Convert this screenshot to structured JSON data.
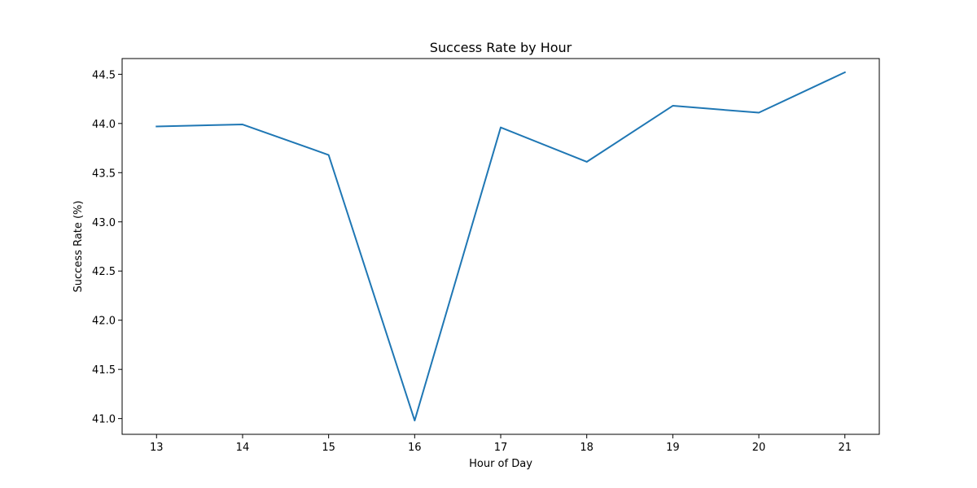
{
  "chart_data": {
    "type": "line",
    "title": "Success Rate by Hour",
    "xlabel": "Hour of Day",
    "ylabel": "Success Rate (%)",
    "x": [
      13,
      14,
      15,
      16,
      17,
      18,
      19,
      20,
      21
    ],
    "series": [
      {
        "name": "Success Rate",
        "values": [
          43.97,
          43.99,
          43.68,
          40.98,
          43.96,
          43.61,
          44.18,
          44.11,
          44.52
        ]
      }
    ],
    "xlim": [
      12.6,
      21.4
    ],
    "ylim": [
      40.84,
      44.66
    ],
    "xticks": [
      13,
      14,
      15,
      16,
      17,
      18,
      19,
      20,
      21
    ],
    "yticks": [
      41.0,
      41.5,
      42.0,
      42.5,
      43.0,
      43.5,
      44.0,
      44.5
    ],
    "ytick_labels": [
      "41.0",
      "41.5",
      "42.0",
      "42.5",
      "43.0",
      "43.5",
      "44.0",
      "44.5"
    ],
    "grid": false,
    "colors": {
      "line": "#1f77b4",
      "axes": "#000000",
      "background": "#ffffff"
    }
  }
}
